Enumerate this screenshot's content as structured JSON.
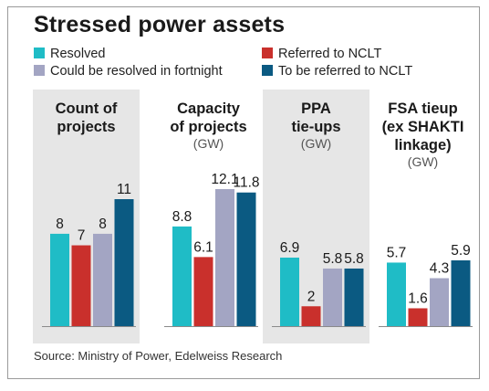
{
  "title": "Stressed power assets",
  "source": "Source: Ministry of Power, Edelweiss Research",
  "colors": {
    "resolved": "#1fbcc6",
    "referred": "#c9302c",
    "fortnight": "#a3a5c3",
    "to_be_referred": "#0b5a82",
    "panel_bg": "#e6e6e6"
  },
  "chart_data": {
    "type": "bar",
    "series_names": [
      "Resolved",
      "Referred to NCLT",
      "Could be resolved in fortnight",
      "To be referred to NCLT"
    ],
    "groups": [
      {
        "title": [
          "Count of",
          "projects"
        ],
        "unit": "",
        "values": [
          8,
          7,
          8,
          11
        ],
        "labels": [
          "8",
          "7",
          "8",
          "11"
        ],
        "shaded": true
      },
      {
        "title": [
          "Capacity",
          "of projects"
        ],
        "unit": "(GW)",
        "values": [
          8.8,
          6.1,
          12.1,
          11.8
        ],
        "labels": [
          "8.8",
          "6.1",
          "12.1",
          "11.8"
        ],
        "shaded": false
      },
      {
        "title": [
          "PPA",
          "tie-ups"
        ],
        "unit": "(GW)",
        "values": [
          6.9,
          2,
          5.8,
          5.8
        ],
        "labels": [
          "6.9",
          "2",
          "5.8",
          "5.8"
        ],
        "shaded": true
      },
      {
        "title": [
          "FSA tieup",
          "(ex SHAKTI",
          "linkage)"
        ],
        "unit": "(GW)",
        "values": [
          5.7,
          1.6,
          4.3,
          5.9
        ],
        "labels": [
          "5.7",
          "1.6",
          "4.3",
          "5.9"
        ],
        "shaded": false
      }
    ]
  }
}
